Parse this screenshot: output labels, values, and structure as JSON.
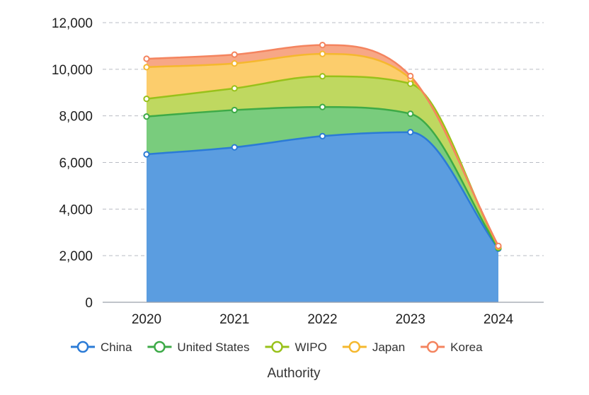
{
  "chart_data": {
    "type": "area",
    "stacked": true,
    "x": [
      "2020",
      "2021",
      "2022",
      "2023",
      "2024"
    ],
    "xlabel": "Authority",
    "ylabel": "",
    "ylim": [
      0,
      12000
    ],
    "yticks": [
      0,
      2000,
      4000,
      6000,
      8000,
      10000,
      12000
    ],
    "ytick_labels": [
      "0",
      "2,000",
      "4,000",
      "6,000",
      "8,000",
      "10,000",
      "12,000"
    ],
    "grid": "horizontal dashed",
    "legend_position": "bottom",
    "series": [
      {
        "name": "China",
        "color": "#2b7bd6",
        "fill": "#5b9de0",
        "values": [
          6350,
          6650,
          7130,
          7300,
          2300
        ]
      },
      {
        "name": "United States",
        "color": "#3daa47",
        "fill": "#79cc7d",
        "values": [
          1620,
          1600,
          1250,
          790,
          30
        ]
      },
      {
        "name": "WIPO",
        "color": "#98c11a",
        "fill": "#bfd860",
        "values": [
          760,
          930,
          1320,
          1290,
          30
        ]
      },
      {
        "name": "Japan",
        "color": "#f5b82e",
        "fill": "#fccd6c",
        "values": [
          1360,
          1070,
          960,
          220,
          30
        ]
      },
      {
        "name": "Korea",
        "color": "#f4845f",
        "fill": "#f7a786",
        "values": [
          360,
          380,
          380,
          110,
          30
        ]
      }
    ]
  }
}
